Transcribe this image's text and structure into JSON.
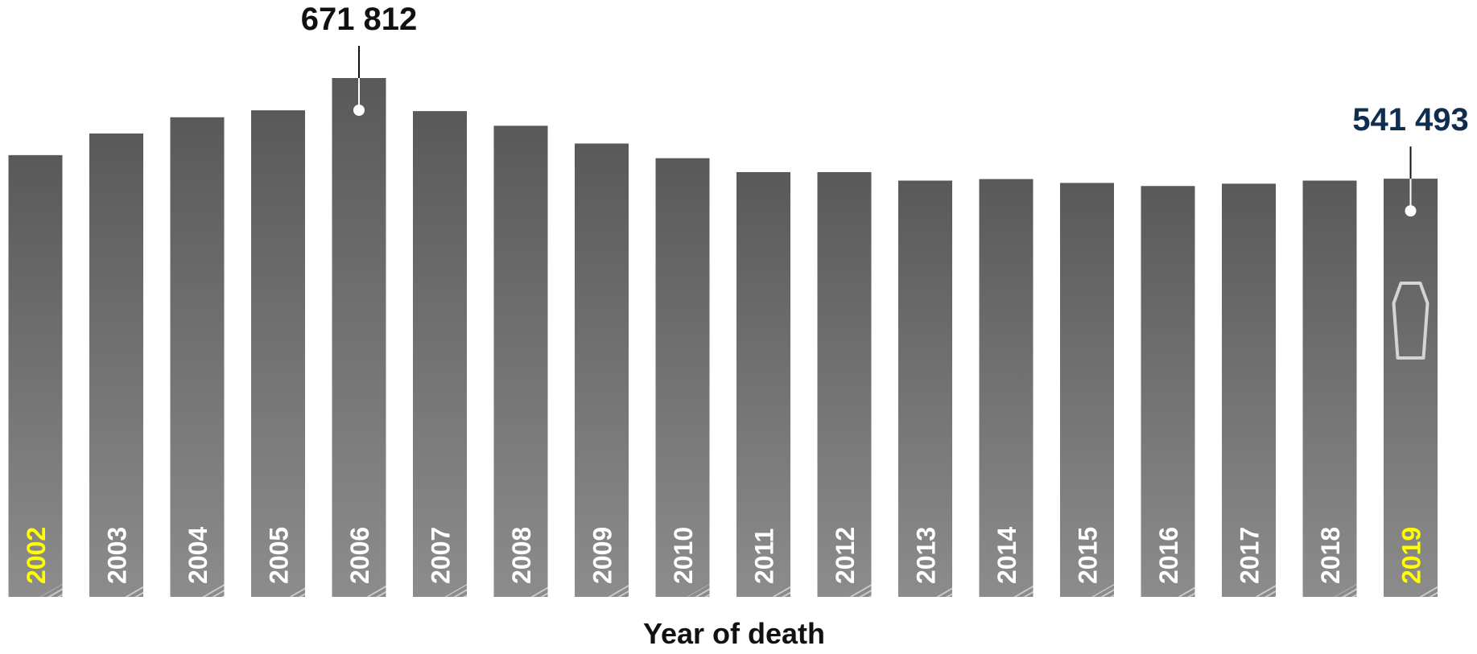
{
  "chart_data": {
    "type": "bar",
    "xlabel": "Year of death",
    "ylabel": "",
    "title": "",
    "categories": [
      "2002",
      "2003",
      "2004",
      "2005",
      "2006",
      "2007",
      "2008",
      "2009",
      "2010",
      "2011",
      "2012",
      "2013",
      "2014",
      "2015",
      "2016",
      "2017",
      "2018",
      "2019"
    ],
    "values": [
      572000,
      600000,
      621000,
      630000,
      671812,
      629000,
      610000,
      587000,
      568000,
      550000,
      550000,
      539000,
      541000,
      536000,
      532000,
      535000,
      539000,
      541493
    ],
    "ylim": [
      0,
      690000
    ],
    "grid": false,
    "highlighted_categories": [
      "2002",
      "2019"
    ],
    "annotations": [
      {
        "category": "2006",
        "text": "671 812",
        "color": "#111111"
      },
      {
        "category": "2019",
        "text": "541 493",
        "color": "#0f2d4f"
      }
    ],
    "colors": {
      "bar_top": "#595959",
      "bar_bottom": "#8c8c8c",
      "category_label": "#ffffff",
      "category_label_highlight": "#ffff00",
      "axis_label": "#111111",
      "coffin_outline": "#d4d4d4",
      "pointer": "#111111"
    },
    "icons": {
      "last_bar": "coffin-icon"
    }
  }
}
